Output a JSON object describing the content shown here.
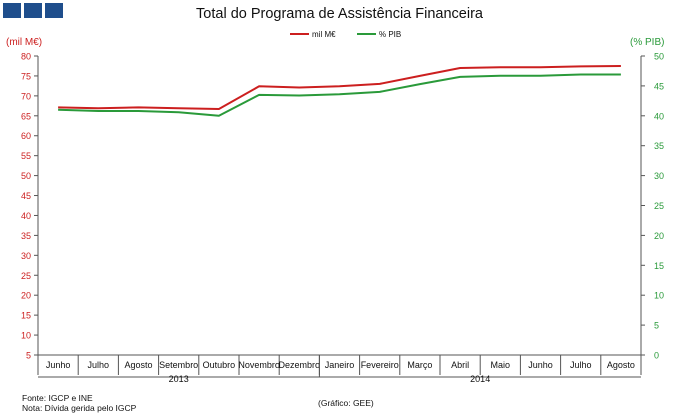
{
  "chart_data": {
    "type": "line",
    "title": "Total do Programa de Assistência Financeira",
    "y_left_label": "(mil M€)",
    "y_right_label": "(% PIB)",
    "y_left_range": [
      5,
      80
    ],
    "y_right_range": [
      0,
      50
    ],
    "y_left_ticks": [
      "5",
      "10",
      "15",
      "20",
      "25",
      "30",
      "35",
      "40",
      "45",
      "50",
      "55",
      "60",
      "65",
      "70",
      "75",
      "80"
    ],
    "y_right_ticks": [
      "0",
      "5",
      "10",
      "15",
      "20",
      "25",
      "30",
      "35",
      "40",
      "45",
      "50"
    ],
    "categories": [
      "Junho",
      "Julho",
      "Agosto",
      "Setembro",
      "Outubro",
      "Novembro",
      "Dezembro",
      "Janeiro",
      "Fevereiro",
      "Março",
      "Abril",
      "Maio",
      "Junho",
      "Julho",
      "Agosto"
    ],
    "year_groups": [
      {
        "label": "2013",
        "count": 7
      },
      {
        "label": "2014",
        "count": 8
      }
    ],
    "series": [
      {
        "name": "mil M€",
        "axis": "left",
        "color": "#cc1f1f",
        "values": [
          67.1,
          66.9,
          67.1,
          66.9,
          66.7,
          72.4,
          72.1,
          72.4,
          73.0,
          75.0,
          77.0,
          77.2,
          77.2,
          77.4,
          77.5
        ]
      },
      {
        "name": "% PIB",
        "axis": "right",
        "color": "#2a9a3a",
        "values": [
          41.0,
          40.8,
          40.8,
          40.6,
          40.0,
          43.5,
          43.4,
          43.6,
          44.0,
          45.3,
          46.5,
          46.7,
          46.7,
          46.9,
          46.9
        ]
      }
    ],
    "legend_position": "top-center",
    "grid": false
  },
  "footer": {
    "source": "Fonte: IGCP e INE",
    "note": "Nota: Dívida gerida pelo IGCP",
    "credit": "(Gráfico: GEE)"
  }
}
